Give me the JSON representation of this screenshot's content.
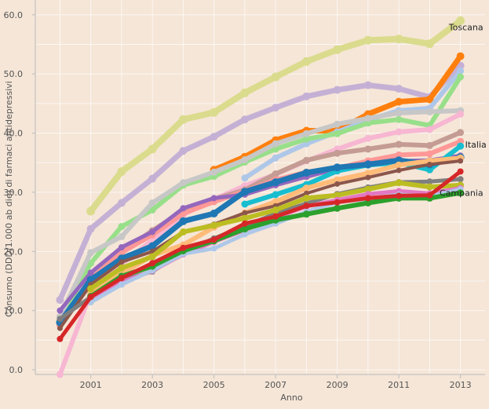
{
  "chart_data": {
    "type": "line",
    "xlabel": "Anno",
    "ylabel": "Consumo (DDD/1.000 ab die) di farmaci antidepressivi",
    "xlim": [
      1999.2,
      2013.8
    ],
    "ylim": [
      -0.8,
      62.5
    ],
    "x_ticks": [
      "2001",
      "2003",
      "2005",
      "2007",
      "2009",
      "2011",
      "2013"
    ],
    "y_ticks": [
      "0.0",
      "10.0",
      "20.0",
      "30.0",
      "40.0",
      "50.0",
      "60.0"
    ],
    "grid": true,
    "legend": "none",
    "x": [
      2000,
      2001,
      2002,
      2003,
      2004,
      2005,
      2006,
      2007,
      2008,
      2009,
      2010,
      2011,
      2012,
      2013
    ],
    "series": [
      {
        "label": "Toscana",
        "color": "#dbdb8d",
        "width": 8,
        "values": [
          null,
          26.8,
          33.5,
          37.3,
          42.3,
          43.5,
          46.8,
          49.5,
          52.1,
          54.1,
          55.7,
          55.9,
          55.1,
          59.0
        ]
      },
      {
        "color": "#c5b0d5",
        "width": 7,
        "values": [
          11.8,
          23.8,
          28.2,
          32.3,
          37.0,
          39.4,
          42.3,
          44.3,
          46.2,
          47.3,
          48.1,
          47.5,
          46.1,
          51.4
        ]
      },
      {
        "color": "#ff7f0e",
        "width": 7,
        "values": [
          null,
          null,
          null,
          null,
          null,
          33.8,
          36.0,
          38.8,
          40.4,
          40.4,
          43.2,
          45.3,
          45.7,
          53.0
        ]
      },
      {
        "color": "#aec7e8",
        "width": 6,
        "values": [
          null,
          null,
          null,
          null,
          null,
          null,
          32.4,
          35.8,
          38.2,
          40.2,
          42.2,
          43.8,
          44.2,
          50.5
        ]
      },
      {
        "color": "#98df8a",
        "width": 6,
        "values": [
          8.2,
          18.0,
          24.2,
          27.0,
          31.2,
          32.7,
          35.1,
          37.3,
          39.0,
          39.9,
          41.7,
          42.3,
          41.3,
          49.5
        ]
      },
      {
        "color": "#c7c7c7",
        "width": 6,
        "values": [
          9.0,
          19.8,
          22.5,
          28.2,
          31.6,
          33.4,
          35.5,
          38.2,
          39.9,
          41.5,
          42.5,
          43.4,
          43.6,
          43.8
        ]
      },
      {
        "color": "#f7b6d2",
        "width": 6,
        "values": [
          -0.8,
          13.0,
          17.9,
          21.9,
          26.2,
          28.8,
          31.1,
          33.0,
          35.3,
          37.3,
          39.1,
          40.2,
          40.6,
          43.2
        ]
      },
      {
        "color": "#c49c94",
        "width": 6,
        "values": [
          8.0,
          15.4,
          19.9,
          23.5,
          26.9,
          28.8,
          30.4,
          33.1,
          35.4,
          36.6,
          37.3,
          38.1,
          37.9,
          40.1
        ]
      },
      {
        "label": "Italia",
        "color": "#ff9896",
        "width": 6,
        "values": [
          7.5,
          15.3,
          19.8,
          22.8,
          26.4,
          28.4,
          30.2,
          32.1,
          33.4,
          34.1,
          35.3,
          36.3,
          36.5,
          38.6
        ]
      },
      {
        "color": "#9467bd",
        "width": 5,
        "values": [
          10.0,
          16.4,
          20.7,
          23.3,
          27.3,
          29.0,
          29.6,
          31.2,
          32.6,
          34.0,
          34.9,
          35.3,
          35.4,
          36.2
        ]
      },
      {
        "color": "#17becf",
        "width": 6,
        "values": [
          null,
          null,
          null,
          null,
          null,
          null,
          28.0,
          29.6,
          31.3,
          33.6,
          34.6,
          35.0,
          33.8,
          37.8
        ]
      },
      {
        "color": "#1f77b4",
        "width": 7,
        "values": [
          8.0,
          15.2,
          18.8,
          20.9,
          25.1,
          26.4,
          30.1,
          31.7,
          33.3,
          34.2,
          34.7,
          35.4,
          34.7,
          35.9
        ]
      },
      {
        "color": "#ffbb78",
        "width": 6,
        "values": [
          null,
          13.0,
          16.2,
          19.3,
          21.1,
          24.1,
          26.5,
          28.4,
          30.7,
          32.1,
          33.2,
          34.6,
          35.3,
          35.8
        ]
      },
      {
        "color": "#8c564b",
        "width": 4,
        "values": [
          7.0,
          14.4,
          18.2,
          20.0,
          23.3,
          24.6,
          26.5,
          27.7,
          29.8,
          31.4,
          32.5,
          33.7,
          34.7,
          35.3
        ]
      },
      {
        "color": "#7f7f7f",
        "width": 5,
        "values": [
          8.6,
          12.3,
          15.1,
          16.6,
          19.9,
          22.2,
          24.3,
          26.4,
          28.1,
          29.7,
          30.8,
          31.7,
          31.8,
          32.2
        ]
      },
      {
        "color": "#bcbd22",
        "width": 6,
        "values": [
          null,
          13.7,
          17.2,
          19.1,
          23.3,
          24.4,
          25.6,
          27.0,
          29.0,
          29.5,
          30.5,
          31.6,
          30.9,
          31.2
        ]
      },
      {
        "color": "#e377c2",
        "width": 5,
        "values": [
          null,
          12.0,
          14.8,
          16.7,
          19.5,
          21.6,
          23.6,
          25.7,
          27.6,
          28.7,
          29.7,
          30.2,
          29.8,
          30.7
        ]
      },
      {
        "color": "#aec7e8",
        "width": 5,
        "values": [
          null,
          11.4,
          14.4,
          16.8,
          19.6,
          20.5,
          22.9,
          24.7,
          26.7,
          28.3,
          28.9,
          29.6,
          29.3,
          30.5
        ]
      },
      {
        "label": "Campania",
        "color": "#2ca02c",
        "width": 6,
        "values": [
          null,
          12.4,
          15.8,
          17.5,
          20.1,
          21.8,
          23.8,
          25.3,
          26.3,
          27.3,
          28.2,
          29.0,
          29.0,
          29.9
        ]
      },
      {
        "color": "#d62728",
        "width": 5,
        "values": [
          5.2,
          12.3,
          15.5,
          18.0,
          20.6,
          22.0,
          24.7,
          25.9,
          27.7,
          28.3,
          29.0,
          29.4,
          29.5,
          33.5
        ]
      }
    ]
  }
}
